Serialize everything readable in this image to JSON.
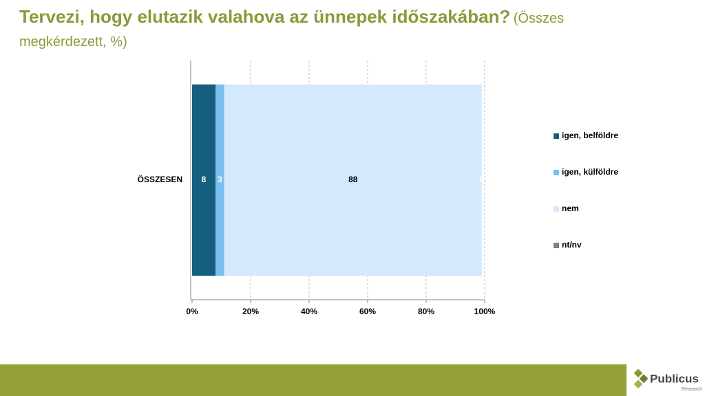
{
  "chart_data": {
    "type": "bar",
    "orientation": "horizontal",
    "stacked": true,
    "title": "Tervezi, hogy elutazik valahova az ünnepek időszakában?",
    "subtitle": "(Összes megkérdezett, %)",
    "categories": [
      "ÖSSZESEN"
    ],
    "series": [
      {
        "name": "igen, belföldre",
        "color": "#165e7e",
        "label_color": "#ffffff",
        "values": [
          8
        ]
      },
      {
        "name": "igen, külföldre",
        "color": "#7bbfef",
        "label_color": "#ffffff",
        "values": [
          3
        ]
      },
      {
        "name": "nem",
        "color": "#d4e9fb",
        "label_color": "#000000",
        "values": [
          88
        ]
      },
      {
        "name": "nt/nv",
        "color": "#808080",
        "label_color": "#ffffff",
        "values": [
          0
        ]
      }
    ],
    "xlim": [
      0,
      100
    ],
    "xticks": [
      {
        "value": 0,
        "label": "0%"
      },
      {
        "value": 20,
        "label": "20%"
      },
      {
        "value": 40,
        "label": "40%"
      },
      {
        "value": 60,
        "label": "60%"
      },
      {
        "value": 80,
        "label": "80%"
      },
      {
        "value": 100,
        "label": "100%"
      }
    ],
    "grid": true,
    "legend": "right"
  },
  "logo": {
    "name": "Publicus",
    "sub": "Research"
  }
}
